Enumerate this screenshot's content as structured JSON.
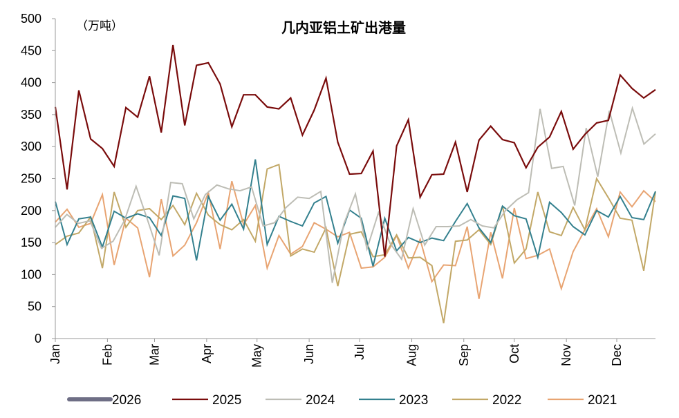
{
  "chart_data": {
    "type": "line",
    "title": "几内亚铝土矿出港量",
    "unit_label": "（万吨）",
    "xlabel": "",
    "ylabel": "",
    "ylim": [
      0,
      500
    ],
    "yticks": [
      0,
      50,
      100,
      150,
      200,
      250,
      300,
      350,
      400,
      450,
      500
    ],
    "x_range": [
      0,
      51
    ],
    "month_ticks": [
      {
        "label": "Jan",
        "week": 0
      },
      {
        "label": "Feb",
        "week": 4.43
      },
      {
        "label": "Mar",
        "week": 8.43
      },
      {
        "label": "Apr",
        "week": 12.86
      },
      {
        "label": "May",
        "week": 17.14
      },
      {
        "label": "Jun",
        "week": 21.57
      },
      {
        "label": "Jul",
        "week": 25.86
      },
      {
        "label": "Aug",
        "week": 30.29
      },
      {
        "label": "Sep",
        "week": 34.71
      },
      {
        "label": "Oct",
        "week": 39.0
      },
      {
        "label": "Nov",
        "week": 43.43
      },
      {
        "label": "Dec",
        "week": 47.71
      }
    ],
    "grid": false,
    "legend_position": "bottom",
    "series": [
      {
        "name": "2026",
        "color": "#6E6E85",
        "values": []
      },
      {
        "name": "2025",
        "color": "#7A0C0C",
        "values": [
          362,
          233,
          388,
          312,
          297,
          269,
          361,
          346,
          410,
          322,
          459,
          333,
          427,
          431,
          398,
          331,
          381,
          381,
          362,
          359,
          376,
          318,
          357,
          407,
          307,
          257,
          258,
          293,
          128,
          301,
          342,
          221,
          256,
          257,
          307,
          229,
          310,
          332,
          311,
          306,
          267,
          299,
          315,
          355,
          296,
          319,
          337,
          341,
          412,
          391,
          376,
          389
        ]
      },
      {
        "name": "2024",
        "color": "#BDBDB5",
        "values": [
          174,
          194,
          180,
          184,
          141,
          152,
          185,
          238,
          185,
          130,
          244,
          242,
          187,
          225,
          240,
          234,
          231,
          237,
          176,
          181,
          205,
          221,
          219,
          230,
          87,
          179,
          226,
          140,
          197,
          149,
          124,
          203,
          146,
          175,
          175,
          176,
          186,
          176,
          173,
          200,
          217,
          228,
          359,
          266,
          269,
          208,
          329,
          253,
          356,
          290,
          360,
          304,
          320
        ]
      },
      {
        "name": "2023",
        "color": "#33808E",
        "values": [
          214,
          147,
          187,
          190,
          143,
          199,
          188,
          195,
          189,
          161,
          223,
          219,
          122,
          222,
          185,
          210,
          171,
          280,
          147,
          191,
          183,
          176,
          212,
          222,
          149,
          201,
          188,
          113,
          188,
          137,
          158,
          150,
          157,
          153,
          183,
          211,
          173,
          150,
          207,
          192,
          187,
          127,
          213,
          197,
          175,
          162,
          200,
          190,
          222,
          189,
          186,
          230
        ]
      },
      {
        "name": "2022",
        "color": "#C2A867",
        "values": [
          147,
          160,
          165,
          190,
          110,
          229,
          174,
          200,
          203,
          186,
          208,
          178,
          227,
          193,
          178,
          170,
          186,
          152,
          265,
          272,
          129,
          140,
          135,
          173,
          82,
          163,
          167,
          128,
          131,
          162,
          126,
          127,
          114,
          24,
          152,
          154,
          170,
          147,
          207,
          118,
          140,
          229,
          167,
          161,
          205,
          170,
          250,
          220,
          188,
          185,
          106,
          230
        ]
      },
      {
        "name": "2021",
        "color": "#E8A472",
        "values": [
          182,
          202,
          174,
          180,
          225,
          115,
          188,
          173,
          96,
          218,
          129,
          146,
          181,
          228,
          140,
          246,
          178,
          208,
          110,
          161,
          132,
          144,
          181,
          171,
          159,
          166,
          110,
          112,
          127,
          161,
          110,
          155,
          89,
          115,
          114,
          175,
          62,
          166,
          94,
          204,
          125,
          130,
          140,
          78,
          136,
          170,
          203,
          159,
          229,
          206,
          231,
          214
        ]
      }
    ]
  }
}
